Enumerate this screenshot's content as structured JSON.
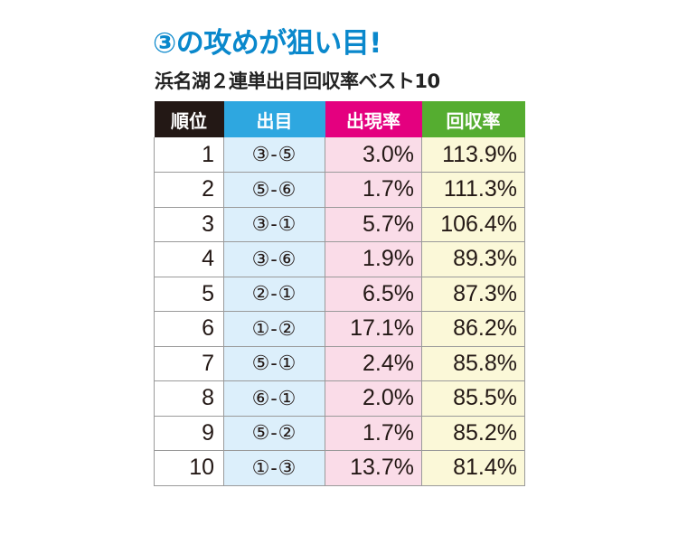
{
  "title": "③の攻めが狙い目!",
  "subtitle": "浜名湖２連単出目回収率ベスト10",
  "chart_data": {
    "type": "table",
    "columns": [
      "順位",
      "出目",
      "出現率",
      "回収率"
    ],
    "rows": [
      {
        "rank": "1",
        "combo": "③-⑤",
        "appearance": "3.0%",
        "return": "113.9%"
      },
      {
        "rank": "2",
        "combo": "⑤-⑥",
        "appearance": "1.7%",
        "return": "111.3%"
      },
      {
        "rank": "3",
        "combo": "③-①",
        "appearance": "5.7%",
        "return": "106.4%"
      },
      {
        "rank": "4",
        "combo": "③-⑥",
        "appearance": "1.9%",
        "return": "89.3%"
      },
      {
        "rank": "5",
        "combo": "②-①",
        "appearance": "6.5%",
        "return": "87.3%"
      },
      {
        "rank": "6",
        "combo": "①-②",
        "appearance": "17.1%",
        "return": "86.2%"
      },
      {
        "rank": "7",
        "combo": "⑤-①",
        "appearance": "2.4%",
        "return": "85.8%"
      },
      {
        "rank": "8",
        "combo": "⑥-①",
        "appearance": "2.0%",
        "return": "85.5%"
      },
      {
        "rank": "9",
        "combo": "⑤-②",
        "appearance": "1.7%",
        "return": "85.2%"
      },
      {
        "rank": "10",
        "combo": "①-③",
        "appearance": "13.7%",
        "return": "81.4%"
      }
    ]
  },
  "colors": {
    "title": "#0a88cc",
    "header_rank": "#231815",
    "header_combo": "#2ea7e0",
    "header_appearance": "#e4007f",
    "header_return": "#55ad30",
    "col_combo_bg": "#dceffb",
    "col_appearance_bg": "#fadce8",
    "col_return_bg": "#fbf8d8"
  }
}
